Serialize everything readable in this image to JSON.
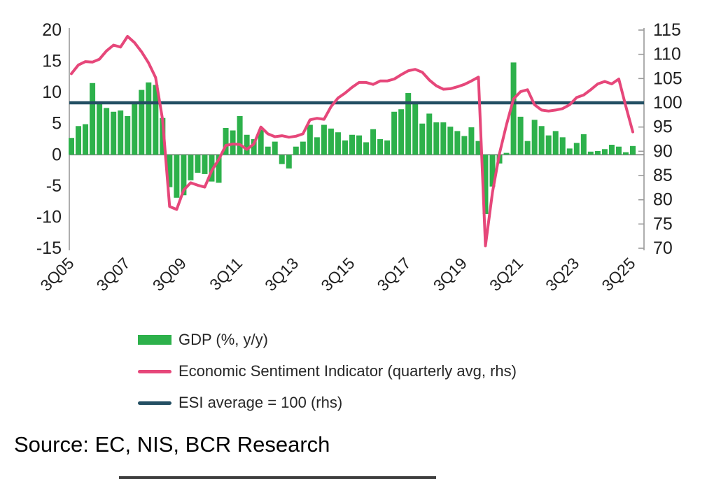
{
  "chart_data": {
    "type": "bar",
    "combo": "bar+line",
    "categories": [
      "3Q05",
      "4Q05",
      "1Q06",
      "2Q06",
      "3Q06",
      "4Q06",
      "1Q07",
      "2Q07",
      "3Q07",
      "4Q07",
      "1Q08",
      "2Q08",
      "3Q08",
      "4Q08",
      "1Q09",
      "2Q09",
      "3Q09",
      "4Q09",
      "1Q10",
      "2Q10",
      "3Q10",
      "4Q10",
      "1Q11",
      "2Q11",
      "3Q11",
      "4Q11",
      "1Q12",
      "2Q12",
      "3Q12",
      "4Q12",
      "1Q13",
      "2Q13",
      "3Q13",
      "4Q13",
      "1Q14",
      "2Q14",
      "3Q14",
      "4Q14",
      "1Q15",
      "2Q15",
      "3Q15",
      "4Q15",
      "1Q16",
      "2Q16",
      "3Q16",
      "4Q16",
      "1Q17",
      "2Q17",
      "3Q17",
      "4Q17",
      "1Q18",
      "2Q18",
      "3Q18",
      "4Q18",
      "1Q19",
      "2Q19",
      "3Q19",
      "4Q19",
      "1Q20",
      "2Q20",
      "3Q20",
      "4Q20",
      "1Q21",
      "2Q21",
      "3Q21",
      "4Q21",
      "1Q22",
      "2Q22",
      "3Q22",
      "4Q22",
      "1Q23",
      "2Q23",
      "3Q23",
      "4Q23",
      "1Q24",
      "2Q24",
      "3Q24",
      "4Q24",
      "1Q25",
      "2Q25",
      "3Q25"
    ],
    "x_tick_labels": [
      "3Q05",
      "3Q07",
      "3Q09",
      "3Q11",
      "3Q13",
      "3Q15",
      "3Q17",
      "3Q19",
      "3Q21",
      "3Q23",
      "3Q25"
    ],
    "x_tick_every": 8,
    "series": [
      {
        "name": "GDP (%, y/y)",
        "render": "bar",
        "axis": "left",
        "color": "#2db14b",
        "values": [
          2.7,
          4.6,
          4.9,
          11.5,
          8.3,
          7.5,
          6.9,
          7.1,
          6.2,
          8.2,
          10.4,
          11.6,
          11.2,
          5.9,
          -5.2,
          -6.9,
          -6.5,
          -4.1,
          -2.9,
          -3.1,
          -4.3,
          -4.5,
          4.3,
          3.9,
          6.2,
          3.2,
          2.5,
          4.0,
          1.3,
          2.1,
          -1.5,
          -2.2,
          1.3,
          2.1,
          4.8,
          2.8,
          4.8,
          4.2,
          3.6,
          2.3,
          3.2,
          3.1,
          2.0,
          4.1,
          2.5,
          2.3,
          6.9,
          7.3,
          9.9,
          8.4,
          5.0,
          6.6,
          5.2,
          5.2,
          4.5,
          3.8,
          3.0,
          4.4,
          2.2,
          -9.5,
          -5.1,
          -1.4,
          0.3,
          14.8,
          6.1,
          2.2,
          5.6,
          4.6,
          3.1,
          3.8,
          2.8,
          1.0,
          1.9,
          3.3,
          0.5,
          0.6,
          0.9,
          1.6,
          1.3,
          0.4,
          1.4
        ]
      },
      {
        "name": "Economic Sentiment Indicator (quarterly avg, rhs)",
        "render": "line",
        "axis": "right",
        "color": "#e6477a",
        "values": [
          106.0,
          107.8,
          108.5,
          108.4,
          109.0,
          110.7,
          111.9,
          111.5,
          113.7,
          112.4,
          110.5,
          108.2,
          105.2,
          96.5,
          78.6,
          78.0,
          82.0,
          83.5,
          83.0,
          82.6,
          86.0,
          88.3,
          91.2,
          91.5,
          91.4,
          90.4,
          91.5,
          95.0,
          93.6,
          93.0,
          93.2,
          92.9,
          93.1,
          93.6,
          96.5,
          96.8,
          96.6,
          99.2,
          101.0,
          102.0,
          103.2,
          104.2,
          104.2,
          103.8,
          104.5,
          104.5,
          104.9,
          105.8,
          106.6,
          106.9,
          106.3,
          104.7,
          103.5,
          102.8,
          102.9,
          103.3,
          103.8,
          104.5,
          105.3,
          70.5,
          81.5,
          89.5,
          95.5,
          100.8,
          102.3,
          102.7,
          99.6,
          98.5,
          98.3,
          98.5,
          98.8,
          99.6,
          101.1,
          101.6,
          102.7,
          103.9,
          104.4,
          103.9,
          104.9,
          99.3,
          94.0
        ]
      },
      {
        "name": "ESI average = 100 (rhs)",
        "render": "hline",
        "axis": "right",
        "color": "#234f63",
        "value": 100
      }
    ],
    "left_axis": {
      "min": -15,
      "max": 20,
      "tick_labels": [
        "20",
        "15",
        "10",
        "5",
        "0",
        "-5",
        "-10",
        "-15"
      ]
    },
    "right_axis": {
      "min": 70,
      "max": 115,
      "tick_labels": [
        "115",
        "110",
        "105",
        "100",
        "95",
        "90",
        "85",
        "80",
        "75",
        "70"
      ]
    },
    "grid": "off",
    "legend_position": "bottom-left",
    "title": "",
    "xlabel": "",
    "ylabel": ""
  },
  "legend": {
    "items": [
      {
        "label": "GDP (%, y/y)",
        "color": "#2db14b",
        "kind": "bar-swatch"
      },
      {
        "label": "Economic Sentiment Indicator (quarterly avg, rhs)",
        "color": "#e6477a",
        "kind": "line-swatch"
      },
      {
        "label": "ESI average = 100 (rhs)",
        "color": "#234f63",
        "kind": "line-swatch"
      }
    ]
  },
  "source_text": "Source: EC, NIS, BCR Research",
  "colors": {
    "gdp_bar": "#2db14b",
    "esi_line": "#e6477a",
    "esi_average_line": "#234f63",
    "axis_line": "#9a9a9a",
    "zero_line": "#8c8c8c",
    "axis_text": "#1f1f1f"
  }
}
